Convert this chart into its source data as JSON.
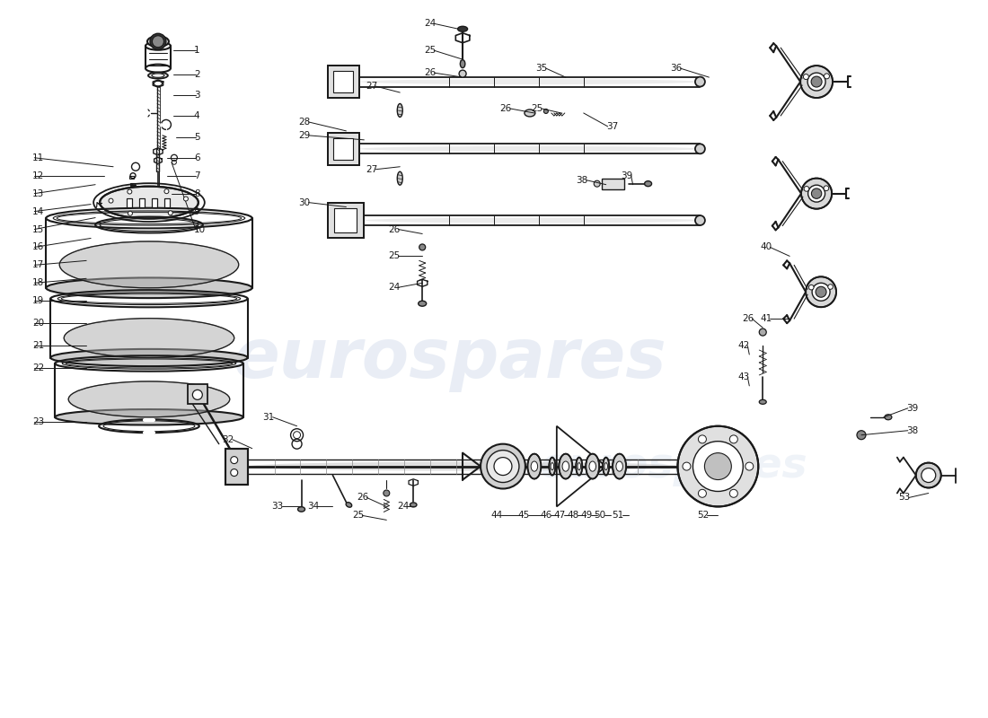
{
  "bg": "#ffffff",
  "lc": "#1a1a1a",
  "wm_color": "#c8d4e8",
  "wm_alpha": 0.4
}
